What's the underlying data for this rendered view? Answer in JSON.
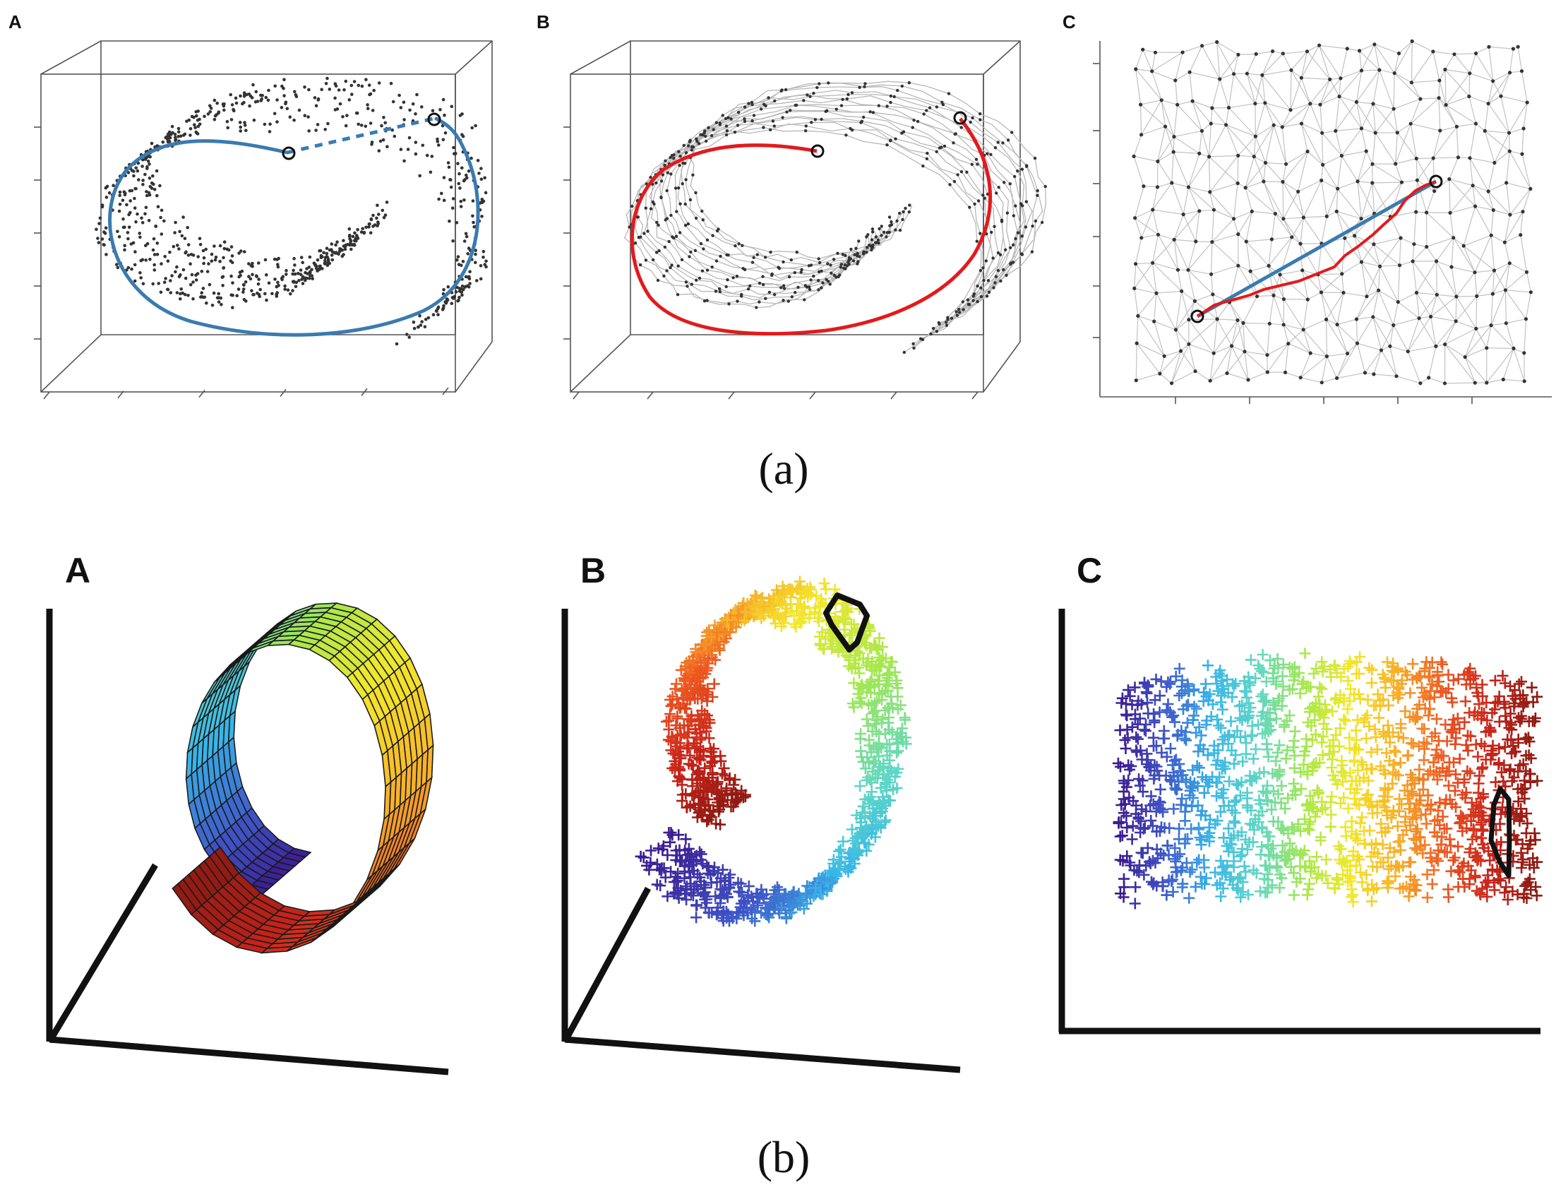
{
  "figure": {
    "row_a": {
      "caption": "(a)",
      "panels": [
        {
          "label": "A",
          "content": "swiss roll point cloud with geodesic (solid) and euclidean (dashed) paths"
        },
        {
          "label": "B",
          "content": "neighborhood graph on swiss roll with shortest graph path"
        },
        {
          "label": "C",
          "content": "2D embedding graph with true geodesic and graph path"
        }
      ]
    },
    "row_b": {
      "caption": "(b)",
      "panels": [
        {
          "label": "A",
          "content": "rolled surface mesh colored by position"
        },
        {
          "label": "B",
          "content": "sampled points with neighborhood outline"
        },
        {
          "label": "C",
          "content": "unrolled embedding with neighborhood outline"
        }
      ]
    },
    "colors": {
      "ink": "#1a1a1a",
      "geodesic_blue": "#3a7bb0",
      "graph_path_red": "#e31a1c",
      "graph_edge_gray": "#b8b8b8",
      "point_dark": "#333333",
      "spectrum": [
        "#3b1a8f",
        "#3f56c8",
        "#38b6e8",
        "#5fd7c6",
        "#a6e84e",
        "#f3e82a",
        "#f7b02a",
        "#ee5a22",
        "#c9241b",
        "#8c1a12"
      ]
    }
  }
}
